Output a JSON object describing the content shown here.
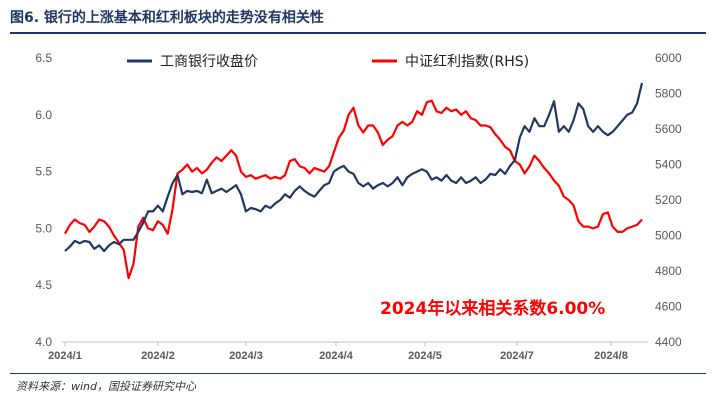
{
  "header": {
    "title": "图6. 银行的上涨基本和红利板块的走势没有相关性"
  },
  "footer": {
    "source": "资料来源：wind，国投证券研究中心"
  },
  "colors": {
    "bank": "#1f3864",
    "dividend": "#ff0000",
    "title": "#1f3864"
  },
  "chart_data": {
    "type": "line",
    "title": "图6. 银行的上涨基本和红利板块的走势没有相关性",
    "x_tick_labels": [
      "2024/1",
      "2024/2",
      "2024/3",
      "2024/4",
      "2024/5",
      "2024/7",
      "2024/8"
    ],
    "y_left_ticks": [
      "4.0",
      "4.5",
      "5.0",
      "5.5",
      "6.0",
      "6.5"
    ],
    "y_right_ticks": [
      "4400",
      "4600",
      "4800",
      "5000",
      "5200",
      "5400",
      "5600",
      "5800",
      "6000"
    ],
    "ylim_left": [
      4.0,
      6.5
    ],
    "ylim_right": [
      4400,
      6000
    ],
    "legend": [
      "工商银行收盘价",
      "中证红利指数(RHS)"
    ],
    "legend_position": "top",
    "annotation": "2024年以来相关系数6.00%",
    "series": [
      {
        "name": "工商银行收盘价",
        "axis": "left",
        "values": [
          4.8,
          4.84,
          4.89,
          4.87,
          4.89,
          4.88,
          4.82,
          4.85,
          4.8,
          4.85,
          4.88,
          4.86,
          4.9,
          4.9,
          4.9,
          4.97,
          5.05,
          5.15,
          5.15,
          5.2,
          5.15,
          5.28,
          5.4,
          5.47,
          5.3,
          5.33,
          5.32,
          5.33,
          5.31,
          5.43,
          5.31,
          5.33,
          5.35,
          5.32,
          5.35,
          5.38,
          5.3,
          5.15,
          5.18,
          5.17,
          5.15,
          5.2,
          5.18,
          5.22,
          5.25,
          5.3,
          5.27,
          5.33,
          5.37,
          5.33,
          5.3,
          5.28,
          5.33,
          5.38,
          5.4,
          5.5,
          5.53,
          5.55,
          5.5,
          5.48,
          5.4,
          5.37,
          5.4,
          5.35,
          5.38,
          5.4,
          5.37,
          5.4,
          5.45,
          5.38,
          5.45,
          5.48,
          5.5,
          5.52,
          5.5,
          5.43,
          5.45,
          5.42,
          5.47,
          5.42,
          5.4,
          5.45,
          5.4,
          5.42,
          5.45,
          5.4,
          5.43,
          5.48,
          5.47,
          5.52,
          5.48,
          5.55,
          5.6,
          5.8,
          5.9,
          5.85,
          5.97,
          5.9,
          5.9,
          6.0,
          6.12,
          5.85,
          5.9,
          5.85,
          5.95,
          6.1,
          6.05,
          5.9,
          5.85,
          5.9,
          5.85,
          5.82,
          5.85,
          5.9,
          5.95,
          6.0,
          6.02,
          6.1,
          6.28
        ]
      },
      {
        "name": "中证红利指数(RHS)",
        "axis": "right",
        "values": [
          5010,
          5060,
          5090,
          5070,
          5060,
          5020,
          5050,
          5090,
          5080,
          5050,
          5000,
          4960,
          4920,
          4760,
          4840,
          5050,
          5100,
          5040,
          5030,
          5080,
          5060,
          5010,
          5150,
          5350,
          5370,
          5400,
          5360,
          5380,
          5350,
          5370,
          5410,
          5440,
          5420,
          5450,
          5480,
          5450,
          5360,
          5330,
          5340,
          5320,
          5330,
          5340,
          5320,
          5330,
          5320,
          5340,
          5420,
          5430,
          5390,
          5380,
          5350,
          5380,
          5370,
          5360,
          5390,
          5470,
          5550,
          5590,
          5680,
          5720,
          5620,
          5580,
          5620,
          5620,
          5580,
          5510,
          5540,
          5560,
          5620,
          5640,
          5620,
          5640,
          5700,
          5680,
          5750,
          5760,
          5700,
          5690,
          5720,
          5700,
          5710,
          5680,
          5700,
          5660,
          5650,
          5620,
          5620,
          5610,
          5570,
          5540,
          5500,
          5480,
          5420,
          5400,
          5350,
          5390,
          5450,
          5420,
          5380,
          5350,
          5310,
          5280,
          5220,
          5200,
          5170,
          5080,
          5050,
          5050,
          5040,
          5050,
          5120,
          5130,
          5050,
          5020,
          5020,
          5040,
          5050,
          5060,
          5090
        ]
      }
    ]
  }
}
